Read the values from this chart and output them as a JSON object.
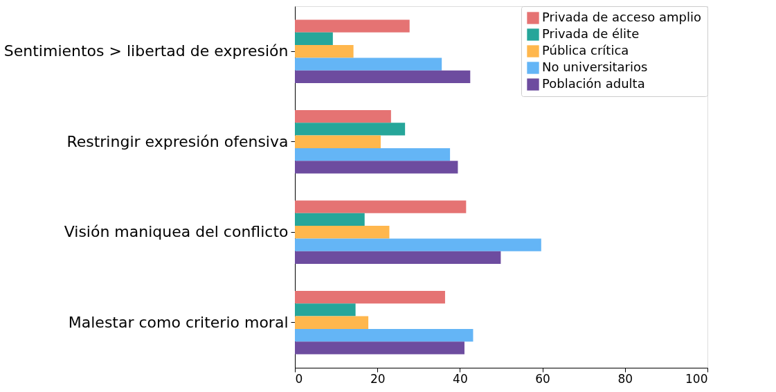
{
  "chart_data": {
    "type": "bar",
    "orientation": "horizontal",
    "categories": [
      "Sentimientos > libertad de expresión",
      "Restringir expresión ofensiva",
      "Visión maniquea del conflicto",
      "Malestar como criterio moral"
    ],
    "series": [
      {
        "name": "Privada de acceso amplio",
        "color": "#e57373",
        "values": [
          27.8,
          23.3,
          41.5,
          36.4
        ]
      },
      {
        "name": "Privada de élite",
        "color": "#26a69a",
        "values": [
          9.2,
          26.7,
          16.9,
          14.7
        ]
      },
      {
        "name": "Pública crítica",
        "color": "#ffb74d",
        "values": [
          14.2,
          20.8,
          22.9,
          17.8
        ]
      },
      {
        "name": "No universitarios",
        "color": "#64b5f6",
        "values": [
          35.6,
          37.6,
          59.7,
          43.2
        ]
      },
      {
        "name": "Población adulta",
        "color": "#6d4c9f",
        "values": [
          42.5,
          39.5,
          49.9,
          41.1
        ]
      }
    ],
    "xlim": [
      0,
      100
    ],
    "xticks": [
      0,
      20,
      40,
      60,
      80,
      100
    ],
    "grid": false,
    "legend": "top right"
  }
}
